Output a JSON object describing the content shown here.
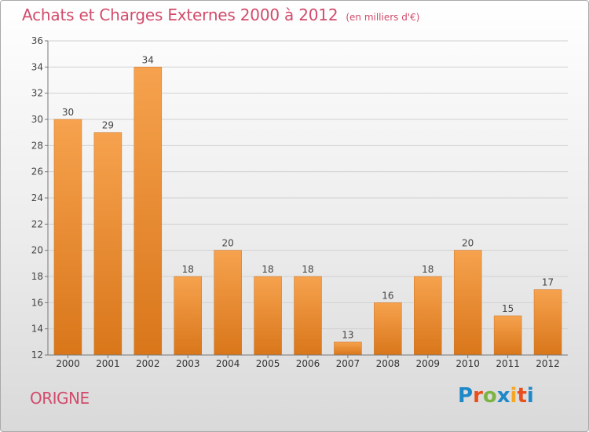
{
  "header": {
    "title": "Achats et Charges Externes 2000 à 2012",
    "subtitle": "(en milliers d'€)"
  },
  "place": "ORIGNE",
  "brand": {
    "letters": [
      "P",
      "r",
      "o",
      "x",
      "i",
      "t",
      "i"
    ],
    "colors": [
      "#1e88c9",
      "#e94e1b",
      "#7cb342",
      "#1e88c9",
      "#f5a623",
      "#e94e1b",
      "#1e88c9"
    ]
  },
  "colors": {
    "bar_light": "#f6a24e",
    "bar_dark": "#d9761a",
    "title": "#d24b6b",
    "axis": "#777777",
    "grid": "#d0d0d0"
  },
  "chart_data": {
    "type": "bar",
    "title": "Achats et Charges Externes 2000 à 2012",
    "subtitle": "(en milliers d'€)",
    "categories": [
      "2000",
      "2001",
      "2002",
      "2003",
      "2004",
      "2005",
      "2006",
      "2007",
      "2008",
      "2009",
      "2010",
      "2011",
      "2012"
    ],
    "values": [
      30,
      29,
      34,
      18,
      20,
      18,
      18,
      13,
      16,
      18,
      20,
      15,
      17
    ],
    "data_labels": [
      "30",
      "29",
      "34",
      "18",
      "20",
      "18",
      "18",
      "13",
      "16",
      "18",
      "20",
      "15",
      "17"
    ],
    "ylim": [
      12,
      36
    ],
    "yticks": [
      12,
      14,
      16,
      18,
      20,
      22,
      24,
      26,
      28,
      30,
      32,
      34,
      36
    ],
    "ytick_labels": [
      "12",
      "14",
      "16",
      "18",
      "20",
      "22",
      "24",
      "26",
      "28",
      "30",
      "32",
      "34",
      "36"
    ],
    "grid": true,
    "legend": "none",
    "xlabel": "",
    "ylabel": ""
  }
}
